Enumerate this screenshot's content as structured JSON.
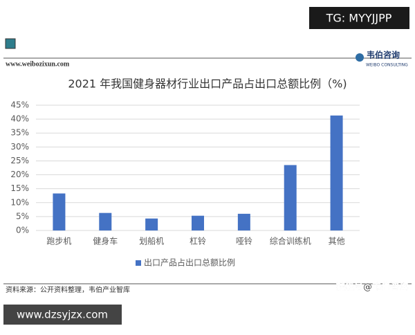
{
  "header": {
    "tag": "TG: MYYJJPP",
    "website": "www.weibozixun.com",
    "brand": "韦伯咨询",
    "brand_en": "WEIBO CONSULTING"
  },
  "chart_data": {
    "type": "bar",
    "title": "2021 年我国健身器材行业出口产品占出口总额比例（%)",
    "categories": [
      "跑步机",
      "健身车",
      "划船机",
      "杠铃",
      "哑铃",
      "综合训练机",
      "其他"
    ],
    "series": [
      {
        "name": "出口产品占出口总额比例",
        "color": "#4472c4",
        "values": [
          13.3,
          6.3,
          4.3,
          5.3,
          6.0,
          23.5,
          41.3
        ]
      }
    ],
    "ylim": [
      0,
      45
    ],
    "yticks": [
      {
        "value": 0,
        "label": "0%"
      },
      {
        "value": 5,
        "label": "5%"
      },
      {
        "value": 10,
        "label": "10%"
      },
      {
        "value": 15,
        "label": "15%"
      },
      {
        "value": 20,
        "label": "20%"
      },
      {
        "value": 25,
        "label": "25%"
      },
      {
        "value": 30,
        "label": "30%"
      },
      {
        "value": 35,
        "label": "35%"
      },
      {
        "value": 40,
        "label": "40%"
      },
      {
        "value": 45,
        "label": "45%"
      }
    ],
    "grid": true,
    "legend": "bottom"
  },
  "footer": {
    "source": "资料来源：公开资料整理，韦伯产业智库",
    "site": "www.dzsyjzx.com",
    "sohu": "搜狐号@韦伯咨询"
  }
}
